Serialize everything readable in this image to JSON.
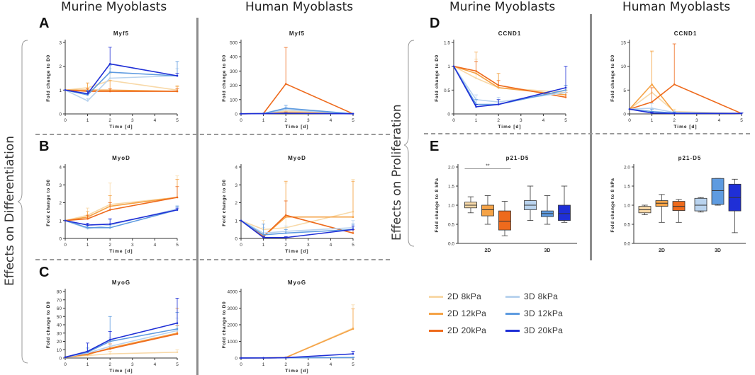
{
  "colors": {
    "2D 8kPa": "#f8d9a8",
    "2D 12kPa": "#f5a347",
    "2D 20kPa": "#ee6a1c",
    "3D 8kPa": "#b9d3ee",
    "3D 12kPa": "#5e9be0",
    "3D 20kPa": "#1f2fd6"
  },
  "column_titles": {
    "left_murine": "Murine Myoblasts",
    "left_human": "Human Myoblasts",
    "right_murine": "Murine Myoblasts",
    "right_human": "Human Myoblasts"
  },
  "side_labels": {
    "differentiation": "Effects on Differentiation",
    "proliferation": "Effects on Proliferation"
  },
  "panel_letters": [
    "A",
    "B",
    "C",
    "D",
    "E"
  ],
  "legend": [
    "2D 8kPa",
    "2D 12kPa",
    "2D 20kPa",
    "3D 8kPa",
    "3D 12kPa",
    "3D 20kPa"
  ],
  "chart_data": [
    {
      "id": "A-murine",
      "type": "line",
      "title": "Myf5",
      "xlabel": "Time [d]",
      "ylabel": "Fold change to D0",
      "xlim": [
        0,
        5
      ],
      "ylim": [
        0,
        3
      ],
      "xticks": [
        0,
        1,
        2,
        3,
        4,
        5
      ],
      "yticks": [
        0,
        1,
        2,
        3
      ],
      "x": [
        0,
        1,
        2,
        5
      ],
      "series": [
        {
          "name": "2D 8kPa",
          "values": [
            1,
            1.1,
            1.4,
            1.0
          ],
          "err": [
            0,
            0.2,
            0.3,
            0.2
          ]
        },
        {
          "name": "2D 12kPa",
          "values": [
            1,
            1.0,
            1.0,
            0.95
          ],
          "err": [
            0,
            0.3,
            0.4,
            0.2
          ]
        },
        {
          "name": "2D 20kPa",
          "values": [
            1,
            0.95,
            0.95,
            0.95
          ],
          "err": [
            0,
            0.1,
            0.1,
            0.1
          ]
        },
        {
          "name": "3D 8kPa",
          "values": [
            1,
            0.55,
            1.5,
            1.6
          ],
          "err": [
            0,
            0.1,
            0.4,
            0.3
          ]
        },
        {
          "name": "3D 12kPa",
          "values": [
            1,
            0.8,
            1.75,
            1.6
          ],
          "err": [
            0,
            0.2,
            0.3,
            0.6
          ]
        },
        {
          "name": "3D 20kPa",
          "values": [
            1,
            0.85,
            2.1,
            1.6
          ],
          "err": [
            0,
            0.1,
            0.7,
            0.1
          ]
        }
      ]
    },
    {
      "id": "A-human",
      "type": "line",
      "title": "Myf5",
      "xlabel": "Time [d]",
      "ylabel": "Fold change to D0",
      "xlim": [
        0,
        5
      ],
      "ylim": [
        0,
        500
      ],
      "xticks": [
        0,
        1,
        2,
        3,
        4,
        5
      ],
      "yticks": [
        0,
        100,
        200,
        300,
        400,
        500
      ],
      "x": [
        0,
        1,
        2,
        5
      ],
      "series": [
        {
          "name": "2D 8kPa",
          "values": [
            1,
            2,
            20,
            1
          ],
          "err": [
            0,
            1,
            10,
            0
          ]
        },
        {
          "name": "2D 12kPa",
          "values": [
            1,
            2,
            10,
            1
          ],
          "err": [
            0,
            1,
            5,
            0
          ]
        },
        {
          "name": "2D 20kPa",
          "values": [
            1,
            3,
            210,
            1
          ],
          "err": [
            0,
            2,
            255,
            0
          ]
        },
        {
          "name": "3D 8kPa",
          "values": [
            1,
            3,
            30,
            1
          ],
          "err": [
            0,
            2,
            15,
            0
          ]
        },
        {
          "name": "3D 12kPa",
          "values": [
            1,
            3,
            40,
            1
          ],
          "err": [
            0,
            2,
            20,
            0
          ]
        },
        {
          "name": "3D 20kPa",
          "values": [
            1,
            2,
            5,
            1
          ],
          "err": [
            0,
            1,
            3,
            0
          ]
        }
      ]
    },
    {
      "id": "B-murine",
      "type": "line",
      "title": "MyoD",
      "xlabel": "Time [d]",
      "ylabel": "Fold change to D0",
      "xlim": [
        0,
        5
      ],
      "ylim": [
        0,
        4
      ],
      "xticks": [
        0,
        1,
        2,
        3,
        4,
        5
      ],
      "yticks": [
        0,
        1,
        2,
        3,
        4
      ],
      "x": [
        0,
        1,
        2,
        5
      ],
      "series": [
        {
          "name": "2D 8kPa",
          "values": [
            1,
            1.3,
            1.9,
            2.3
          ],
          "err": [
            0,
            0.4,
            1.2,
            1.2
          ]
        },
        {
          "name": "2D 12kPa",
          "values": [
            1,
            1.2,
            1.8,
            2.3
          ],
          "err": [
            0,
            0.3,
            0.6,
            1.0
          ]
        },
        {
          "name": "2D 20kPa",
          "values": [
            1,
            1.1,
            1.6,
            2.3
          ],
          "err": [
            0,
            0.2,
            0.4,
            0.6
          ]
        },
        {
          "name": "3D 8kPa",
          "values": [
            1,
            0.55,
            0.75,
            1.65
          ],
          "err": [
            0,
            0.15,
            0.3,
            0.2
          ]
        },
        {
          "name": "3D 12kPa",
          "values": [
            1,
            0.6,
            0.6,
            1.6
          ],
          "err": [
            0,
            0.1,
            0.2,
            0.2
          ]
        },
        {
          "name": "3D 20kPa",
          "values": [
            1,
            0.75,
            0.8,
            1.6
          ],
          "err": [
            0,
            0.1,
            0.3,
            0.1
          ]
        }
      ]
    },
    {
      "id": "B-human",
      "type": "line",
      "title": "MyoD",
      "xlabel": "Time [d]",
      "ylabel": "Fold change to D0",
      "xlim": [
        0,
        5
      ],
      "ylim": [
        0,
        4
      ],
      "xticks": [
        0,
        1,
        2,
        3,
        4,
        5
      ],
      "yticks": [
        0,
        1,
        2,
        3,
        4
      ],
      "x": [
        0,
        1,
        2,
        5
      ],
      "series": [
        {
          "name": "2D 8kPa",
          "values": [
            1,
            0.5,
            0.6,
            1.5
          ],
          "err": [
            0,
            0.5,
            2.5,
            1.8
          ]
        },
        {
          "name": "2D 12kPa",
          "values": [
            1,
            0.1,
            1.2,
            1.2
          ],
          "err": [
            0,
            0.2,
            2.0,
            2.0
          ]
        },
        {
          "name": "2D 20kPa",
          "values": [
            1,
            0.1,
            1.3,
            0.3
          ],
          "err": [
            0,
            0.1,
            0.8,
            0.2
          ]
        },
        {
          "name": "3D 8kPa",
          "values": [
            1,
            0.3,
            0.4,
            0.6
          ],
          "err": [
            0,
            0.3,
            0.3,
            0.4
          ]
        },
        {
          "name": "3D 12kPa",
          "values": [
            1,
            0.2,
            0.3,
            0.5
          ],
          "err": [
            0,
            0.6,
            0.2,
            0.3
          ]
        },
        {
          "name": "3D 20kPa",
          "values": [
            1,
            0.05,
            0.05,
            0.5
          ],
          "err": [
            0,
            0.05,
            0.05,
            0.2
          ]
        }
      ]
    },
    {
      "id": "C-murine",
      "type": "line",
      "title": "MyoG",
      "xlabel": "Time [d]",
      "ylabel": "Fold change to D0",
      "xlim": [
        0,
        5
      ],
      "ylim": [
        0,
        80
      ],
      "xticks": [
        0,
        1,
        2,
        3,
        4,
        5
      ],
      "yticks": [
        0,
        10,
        20,
        30,
        40,
        50,
        60,
        70,
        80
      ],
      "x": [
        0,
        1,
        2,
        5
      ],
      "series": [
        {
          "name": "2D 8kPa",
          "values": [
            1,
            3,
            5,
            7
          ],
          "err": [
            0,
            2,
            3,
            3
          ]
        },
        {
          "name": "2D 12kPa",
          "values": [
            1,
            4,
            12,
            30
          ],
          "err": [
            0,
            3,
            8,
            30
          ]
        },
        {
          "name": "2D 20kPa",
          "values": [
            1,
            5,
            11,
            29
          ],
          "err": [
            0,
            3,
            6,
            10
          ]
        },
        {
          "name": "3D 8kPa",
          "values": [
            1,
            6,
            14,
            33
          ],
          "err": [
            0,
            4,
            10,
            15
          ]
        },
        {
          "name": "3D 12kPa",
          "values": [
            1,
            7,
            20,
            35
          ],
          "err": [
            0,
            5,
            30,
            20
          ]
        },
        {
          "name": "3D 20kPa",
          "values": [
            1,
            8,
            22,
            42
          ],
          "err": [
            0,
            10,
            10,
            30
          ]
        }
      ]
    },
    {
      "id": "C-human",
      "type": "line",
      "title": "MyoG",
      "xlabel": "Time [d]",
      "ylabel": "Fold change to D0",
      "xlim": [
        0,
        5
      ],
      "ylim": [
        0,
        4000
      ],
      "xticks": [
        0,
        1,
        2,
        3,
        4,
        5
      ],
      "yticks": [
        0,
        1000,
        2000,
        3000,
        4000
      ],
      "x": [
        0,
        1,
        2,
        5
      ],
      "series": [
        {
          "name": "2D 8kPa",
          "values": [
            1,
            10,
            40,
            1800
          ],
          "err": [
            0,
            10,
            30,
            1400
          ]
        },
        {
          "name": "2D 12kPa",
          "values": [
            1,
            10,
            30,
            1750
          ],
          "err": [
            0,
            10,
            20,
            1200
          ]
        },
        {
          "name": "2D 20kPa",
          "values": [
            1,
            5,
            20,
            20
          ],
          "err": [
            0,
            5,
            10,
            10
          ]
        },
        {
          "name": "3D 8kPa",
          "values": [
            1,
            5,
            20,
            20
          ],
          "err": [
            0,
            5,
            10,
            10
          ]
        },
        {
          "name": "3D 12kPa",
          "values": [
            1,
            5,
            15,
            30
          ],
          "err": [
            0,
            5,
            10,
            20
          ]
        },
        {
          "name": "3D 20kPa",
          "values": [
            1,
            5,
            20,
            250
          ],
          "err": [
            0,
            5,
            10,
            150
          ]
        }
      ]
    },
    {
      "id": "D-murine",
      "type": "line",
      "title": "CCND1",
      "xlabel": "Time [d]",
      "ylabel": "Fold change to D0",
      "xlim": [
        0,
        5
      ],
      "ylim": [
        0,
        1.5
      ],
      "xticks": [
        0,
        1,
        2,
        3,
        4,
        5
      ],
      "yticks": [
        0.0,
        0.5,
        1.0,
        1.5
      ],
      "x": [
        0,
        1,
        2,
        5
      ],
      "series": [
        {
          "name": "2D 8kPa",
          "values": [
            1,
            0.75,
            0.55,
            0.45
          ],
          "err": [
            0,
            0.4,
            0.3,
            0.1
          ]
        },
        {
          "name": "2D 12kPa",
          "values": [
            1,
            0.85,
            0.55,
            0.4
          ],
          "err": [
            0,
            0.45,
            0.3,
            0.1
          ]
        },
        {
          "name": "2D 20kPa",
          "values": [
            1,
            0.9,
            0.6,
            0.35
          ],
          "err": [
            0,
            0.2,
            0.1,
            0.1
          ]
        },
        {
          "name": "3D 8kPa",
          "values": [
            1,
            0.3,
            0.25,
            0.45
          ],
          "err": [
            0,
            0.1,
            0.1,
            0.1
          ]
        },
        {
          "name": "3D 12kPa",
          "values": [
            1,
            0.2,
            0.2,
            0.5
          ],
          "err": [
            0,
            0.1,
            0.1,
            0.1
          ]
        },
        {
          "name": "3D 20kPa",
          "values": [
            1,
            0.15,
            0.2,
            0.55
          ],
          "err": [
            0,
            0.05,
            0.1,
            0.45
          ]
        }
      ]
    },
    {
      "id": "D-human",
      "type": "line",
      "title": "CCND1",
      "xlabel": "Time [d]",
      "ylabel": "Fold change to D0",
      "xlim": [
        0,
        5
      ],
      "ylim": [
        0,
        15
      ],
      "xticks": [
        0,
        1,
        2,
        3,
        4,
        5
      ],
      "yticks": [
        0,
        5,
        10,
        15
      ],
      "x": [
        0,
        1,
        2,
        5
      ],
      "series": [
        {
          "name": "2D 8kPa",
          "values": [
            1,
            4.5,
            0.5,
            0.1
          ],
          "err": [
            0,
            8.5,
            0.5,
            0.1
          ]
        },
        {
          "name": "2D 12kPa",
          "values": [
            1,
            6.2,
            0.3,
            0.1
          ],
          "err": [
            0,
            7,
            0.3,
            0.1
          ]
        },
        {
          "name": "2D 20kPa",
          "values": [
            1,
            2.5,
            6.2,
            0.1
          ],
          "err": [
            0,
            3,
            8.5,
            0.1
          ]
        },
        {
          "name": "3D 8kPa",
          "values": [
            1,
            1.2,
            0.3,
            0.1
          ],
          "err": [
            0,
            1,
            0.3,
            0.1
          ]
        },
        {
          "name": "3D 12kPa",
          "values": [
            1,
            0.5,
            0.2,
            0.1
          ],
          "err": [
            0,
            0.5,
            0.2,
            0.1
          ]
        },
        {
          "name": "3D 20kPa",
          "values": [
            1,
            0.2,
            0.1,
            0.1
          ],
          "err": [
            0,
            0.2,
            0.1,
            0.1
          ]
        }
      ]
    },
    {
      "id": "E-murine",
      "type": "box",
      "title": "p21-D5",
      "xlabel": "",
      "ylabel": "Fold change to 8 kPa",
      "ylim": [
        0,
        2
      ],
      "yticks": [
        0.0,
        0.5,
        1.0,
        1.5,
        2.0
      ],
      "group_labels": [
        "2D",
        "3D"
      ],
      "significance": "**",
      "boxes": [
        {
          "name": "2D 8kPa",
          "min": 0.8,
          "q1": 0.93,
          "median": 1.0,
          "q3": 1.08,
          "max": 1.22
        },
        {
          "name": "2D 12kPa",
          "min": 0.5,
          "q1": 0.72,
          "median": 0.88,
          "q3": 1.0,
          "max": 1.25
        },
        {
          "name": "2D 20kPa",
          "min": 0.2,
          "q1": 0.35,
          "median": 0.58,
          "q3": 0.85,
          "max": 1.1
        },
        {
          "name": "3D 8kPa",
          "min": 0.6,
          "q1": 0.88,
          "median": 1.0,
          "q3": 1.12,
          "max": 1.5
        },
        {
          "name": "3D 12kPa",
          "min": 0.5,
          "q1": 0.7,
          "median": 0.78,
          "q3": 0.85,
          "max": 1.25
        },
        {
          "name": "3D 20kPa",
          "min": 0.55,
          "q1": 0.6,
          "median": 0.78,
          "q3": 1.0,
          "max": 1.5
        }
      ]
    },
    {
      "id": "E-human",
      "type": "box",
      "title": "p21-D5",
      "xlabel": "",
      "ylabel": "Fold change to 8 kPa",
      "ylim": [
        0,
        2
      ],
      "yticks": [
        0.0,
        0.5,
        1.0,
        1.5,
        2.0
      ],
      "group_labels": [
        "2D",
        "3D"
      ],
      "significance": "",
      "boxes": [
        {
          "name": "2D 8kPa",
          "min": 0.75,
          "q1": 0.8,
          "median": 0.88,
          "q3": 0.97,
          "max": 1.0
        },
        {
          "name": "2D 12kPa",
          "min": 0.55,
          "q1": 0.97,
          "median": 1.05,
          "q3": 1.12,
          "max": 1.28
        },
        {
          "name": "2D 20kPa",
          "min": 0.55,
          "q1": 0.86,
          "median": 0.97,
          "q3": 1.1,
          "max": 1.15
        },
        {
          "name": "3D 8kPa",
          "min": 0.82,
          "q1": 0.85,
          "median": 1.0,
          "q3": 1.18,
          "max": 1.2
        },
        {
          "name": "3D 12kPa",
          "min": 1.0,
          "q1": 1.02,
          "median": 1.38,
          "q3": 1.7,
          "max": 1.7
        },
        {
          "name": "3D 20kPa",
          "min": 0.28,
          "q1": 0.85,
          "median": 1.2,
          "q3": 1.55,
          "max": 1.68
        }
      ]
    }
  ]
}
